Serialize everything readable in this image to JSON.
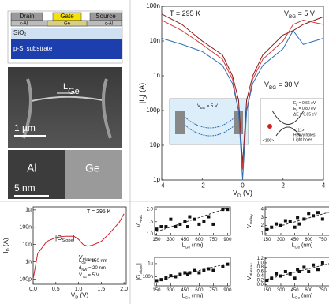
{
  "schematic": {
    "drain": "Drain",
    "gate": "Gate",
    "source": "Source",
    "contact_left": "c-Al",
    "channel": "Ge",
    "contact_right": "c-Al",
    "oxide": "SiO₂",
    "substrate": "p-Si substrate"
  },
  "sem": {
    "length": {
      "main": "L",
      "sub": "Ge"
    },
    "scale": "1 µm"
  },
  "tem": {
    "left": "Al",
    "right": "Ge",
    "scale": "5 nm"
  },
  "inset": {
    "bias": {
      "main": "V",
      "sub": "BG",
      "rest": " = 5 V"
    },
    "bias2": {
      "main": "V",
      "sub": "BG",
      "rest": " = 30 V"
    },
    "el": {
      "main": "E",
      "sub": "L",
      "rest": " = 0.66 eV"
    },
    "eg": {
      "main": "E",
      "sub": "Γ",
      "rest": " = 0.80 eV"
    },
    "de": "ΔE = 0.85 eV",
    "dir1": "<100>",
    "dir2": "<111>",
    "hh": "Heavy holes",
    "lh": "Light holes"
  },
  "chart_data": [
    {
      "type": "line",
      "log_y": true,
      "xlabel": {
        "main": "V",
        "sub": "D",
        "rest": " (V)"
      },
      "ylabel": {
        "main": "|I",
        "sub": "D",
        "rest": "| (A)"
      },
      "annotations": [
        {
          "main": "T = 295 K"
        },
        {
          "main": "V",
          "sub": "BG",
          "rest": " = 5 V"
        },
        {
          "main": "V",
          "sub": "BG",
          "rest": " = 30 V"
        }
      ],
      "xlim": [
        -4,
        4
      ],
      "xticks": [
        -4,
        -2,
        0,
        2,
        4
      ],
      "ylim": [
        1e-12,
        1e-07
      ],
      "yticks": [
        {
          "value": 1e-12,
          "label": "1p"
        },
        {
          "value": 1e-11,
          "label": "10p"
        },
        {
          "value": 1e-10,
          "label": "100p"
        },
        {
          "value": 1e-09,
          "label": "1n"
        },
        {
          "value": 1e-08,
          "label": "10n"
        },
        {
          "value": 1e-07,
          "label": "100n"
        }
      ],
      "x": [
        -4,
        -3,
        -2,
        -1,
        -0.5,
        -0.2,
        0,
        0.2,
        0.5,
        1,
        2,
        2.5,
        3,
        4
      ],
      "series": [
        {
          "color": "#8b1a1a",
          "values": [
            6e-08,
            3e-08,
            1e-08,
            4e-09,
            1e-09,
            2e-10,
            3e-12,
            2e-10,
            1e-09,
            4e-09,
            1.5e-08,
            2e-08,
            3e-08,
            5e-08
          ]
        },
        {
          "color": "#d23a3a",
          "values": [
            4e-08,
            2e-08,
            8e-09,
            3e-09,
            8e-10,
            1e-10,
            2e-12,
            1e-10,
            8e-10,
            3e-09,
            1e-08,
            3e-08,
            4e-08,
            3e-08
          ]
        },
        {
          "color": "#2f6fb5",
          "values": [
            1.2e-08,
            8e-09,
            5e-09,
            2e-09,
            6e-10,
            1e-10,
            1e-12,
            1e-10,
            6e-10,
            2e-09,
            6e-09,
            2e-08,
            8e-09,
            1.2e-08
          ]
        }
      ]
    },
    {
      "type": "line",
      "log_y": true,
      "xlabel": {
        "main": "V",
        "sub": "D",
        "rest": " (V)"
      },
      "ylabel": {
        "main": "I",
        "sub": "D",
        "rest": " (A)"
      },
      "annotations": [
        {
          "main": "T = 295 K"
        },
        {
          "main": "|G",
          "sub": "Slope",
          "rest": "|"
        },
        {
          "main": "V",
          "sub": "Plateau"
        },
        {
          "main": "L",
          "sub": "Ge",
          "rest": " = 150 nm"
        },
        {
          "main": "d",
          "sub": "NW",
          "rest": " = 20 nm"
        },
        {
          "main": "V",
          "sub": "TG",
          "rest": " = 5 V"
        }
      ],
      "xlim": [
        0,
        2.05
      ],
      "xticks": [
        {
          "value": 0,
          "label": "0,0"
        },
        {
          "value": 0.5,
          "label": "0,5"
        },
        {
          "value": 1,
          "label": "1,0"
        },
        {
          "value": 1.5,
          "label": "1,5"
        },
        {
          "value": 2,
          "label": "2,0"
        }
      ],
      "ylim": [
        5e-11,
        1.5e-06
      ],
      "yticks": [
        {
          "value": 1e-10,
          "label": "100p"
        },
        {
          "value": 1e-09,
          "label": "1n"
        },
        {
          "value": 1e-08,
          "label": "10n"
        },
        {
          "value": 1e-07,
          "label": "100n"
        },
        {
          "value": 1e-06,
          "label": "1µ"
        }
      ],
      "x": [
        0,
        0.1,
        0.3,
        0.5,
        0.7,
        0.9,
        1.0,
        1.1,
        1.2,
        1.3,
        1.5,
        1.7,
        1.9,
        2.0
      ],
      "series": [
        {
          "color": "#d0202a",
          "values": [
            1e-10,
            3e-09,
            1.5e-08,
            2.5e-08,
            3e-08,
            3e-08,
            2e-08,
            1e-08,
            8e-09,
            9e-09,
            1.5e-08,
            5e-08,
            2e-07,
            6e-07
          ]
        }
      ]
    },
    {
      "type": "scatter",
      "xlabel": {
        "main": "L",
        "sub": "Ge",
        "rest": " (nm)"
      },
      "ylabel": {
        "main": "V",
        "sub": "Peak"
      },
      "xlim": [
        130,
        930
      ],
      "xticks": [
        150,
        300,
        450,
        600,
        750,
        900
      ],
      "ylim": [
        0.95,
        2.1
      ],
      "yticks": [
        {
          "value": 1,
          "label": "1.0"
        },
        {
          "value": 1.5,
          "label": "1.5"
        },
        {
          "value": 2,
          "label": "2.0"
        }
      ],
      "x": [
        150,
        200,
        250,
        300,
        350,
        400,
        450,
        480,
        500,
        550,
        600,
        650,
        700,
        750,
        850,
        900
      ],
      "values": [
        1.2,
        1.3,
        1.3,
        1.6,
        1.3,
        1.4,
        1.5,
        1.3,
        1.7,
        1.6,
        1.4,
        1.5,
        1.7,
        1.4,
        2.0,
        2.0
      ],
      "trend": {
        "x": [
          150,
          900
        ],
        "values": [
          1.1,
          2.05
        ]
      }
    },
    {
      "type": "scatter",
      "xlabel": {
        "main": "L",
        "sub": "Ge",
        "rest": " (nm)"
      },
      "ylabel": {
        "main": "V",
        "sub": "Valley"
      },
      "xlim": [
        130,
        930
      ],
      "xticks": [
        150,
        300,
        450,
        600,
        750,
        900
      ],
      "ylim": [
        0.8,
        4.3
      ],
      "yticks": [
        1,
        2,
        3,
        4
      ],
      "x": [
        150,
        200,
        250,
        300,
        350,
        400,
        450,
        480,
        500,
        550,
        600,
        650,
        700,
        750,
        850,
        900
      ],
      "values": [
        1.5,
        1.8,
        2.2,
        2.0,
        2.6,
        2.5,
        1.8,
        3.0,
        2.2,
        2.8,
        3.5,
        3.2,
        3.6,
        2.8,
        3.2,
        3.8
      ],
      "trend": {
        "x": [
          150,
          900
        ],
        "values": [
          1.5,
          3.9
        ]
      }
    },
    {
      "type": "scatter",
      "log_y": true,
      "xlabel": {
        "main": "L",
        "sub": "Ge",
        "rest": " (nm)"
      },
      "ylabel": {
        "main": "|G",
        "sub": "Slope",
        "rest": "|"
      },
      "xlim": [
        130,
        930
      ],
      "xticks": [
        150,
        300,
        450,
        600,
        750,
        900
      ],
      "ylim": [
        2e-08,
        3e-06
      ],
      "yticks": [
        {
          "value": 1e-07,
          "label": "100n"
        },
        {
          "value": 1e-06,
          "label": "1µ"
        }
      ],
      "x": [
        150,
        200,
        250,
        300,
        350,
        400,
        450,
        480,
        500,
        550,
        600,
        650,
        700,
        750,
        850,
        900
      ],
      "values": [
        5e-08,
        6e-08,
        8e-08,
        1.2e-07,
        1e-07,
        1.5e-07,
        2e-07,
        1.5e-07,
        2e-07,
        3e-07,
        2e-07,
        3e-07,
        4e-07,
        3e-07,
        6e-07,
        9e-07
      ],
      "trend": {
        "x": [
          150,
          900
        ],
        "values": [
          5e-08,
          1e-06
        ]
      }
    },
    {
      "type": "scatter",
      "xlabel": {
        "main": "L",
        "sub": "Ge",
        "rest": " (nm)"
      },
      "ylabel": {
        "main": "V",
        "sub": "Plateau"
      },
      "xlim": [
        130,
        930
      ],
      "xticks": [
        150,
        300,
        450,
        600,
        750,
        900
      ],
      "ylim": [
        -0.05,
        1.25
      ],
      "yticks": [
        {
          "value": 0,
          "label": "0.0"
        },
        {
          "value": 0.2,
          "label": "0.2"
        },
        {
          "value": 0.4,
          "label": "0.4"
        },
        {
          "value": 0.6,
          "label": "0.6"
        },
        {
          "value": 0.8,
          "label": "0.8"
        },
        {
          "value": 1,
          "label": "1.0"
        },
        {
          "value": 1.2,
          "label": "1.2"
        }
      ],
      "x": [
        150,
        200,
        250,
        300,
        350,
        400,
        450,
        480,
        500,
        550,
        600,
        650,
        700,
        750,
        850,
        900
      ],
      "values": [
        0.2,
        0.3,
        0.5,
        0.4,
        0.6,
        0.5,
        0.3,
        0.7,
        0.6,
        0.8,
        0.6,
        0.9,
        0.7,
        1.0,
        0.9,
        1.1
      ],
      "trend": {
        "x": [
          150,
          900
        ],
        "values": [
          0.25,
          1.05
        ]
      }
    }
  ]
}
